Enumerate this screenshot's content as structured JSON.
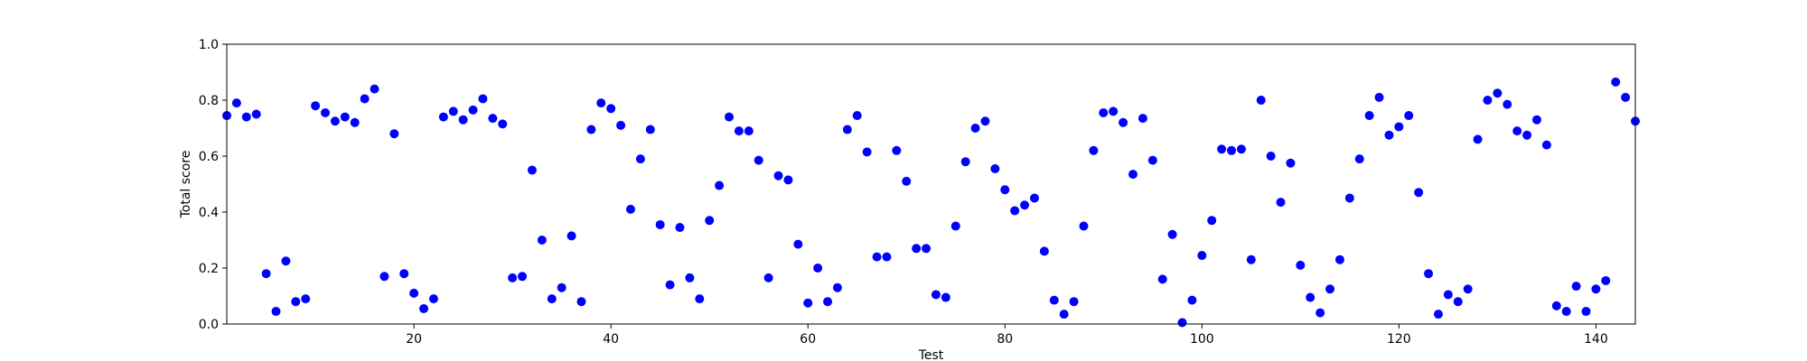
{
  "chart_data": {
    "type": "scatter",
    "title": "",
    "xlabel": "Test",
    "ylabel": "Total score",
    "xlim": [
      1,
      144
    ],
    "ylim": [
      0.0,
      1.0
    ],
    "x_ticks": [
      20,
      40,
      60,
      80,
      100,
      120,
      140
    ],
    "y_ticks": [
      0.0,
      0.2,
      0.4,
      0.6,
      0.8,
      1.0
    ],
    "x_tick_labels": [
      "20",
      "40",
      "60",
      "80",
      "100",
      "120",
      "140"
    ],
    "y_tick_labels": [
      "0.0",
      "0.2",
      "0.4",
      "0.6",
      "0.8",
      "1.0"
    ],
    "grid": false,
    "marker_color": "#0000ff",
    "series": [
      {
        "x": [
          1,
          2,
          3,
          4,
          5,
          6,
          7,
          8,
          9,
          10,
          11,
          12,
          13,
          14,
          15,
          16,
          17,
          18,
          19,
          20,
          21,
          22,
          23,
          24,
          25,
          26,
          27,
          28,
          29,
          30,
          31,
          32,
          33,
          34,
          35,
          36,
          37,
          38,
          39,
          40,
          41,
          42,
          43,
          44,
          45,
          46,
          47,
          48,
          49,
          50,
          51,
          52,
          53,
          54,
          55,
          56,
          57,
          58,
          59,
          60,
          61,
          62,
          63,
          64,
          65,
          66,
          67,
          68,
          69,
          70,
          71,
          72,
          73,
          74,
          75,
          76,
          77,
          78,
          79,
          80,
          81,
          82,
          83,
          84,
          85,
          86,
          87,
          88,
          89,
          90,
          91,
          92,
          93,
          94,
          95,
          96,
          97,
          98,
          99,
          100,
          101,
          102,
          103,
          104,
          105,
          106,
          107,
          108,
          109,
          110,
          111,
          112,
          113,
          114,
          115,
          116,
          117,
          118,
          119,
          120,
          121,
          122,
          123,
          124,
          125,
          126,
          127,
          128,
          129,
          130,
          131,
          132,
          133,
          134,
          135,
          136,
          137,
          138,
          139,
          140,
          141,
          142,
          143,
          144
        ],
        "y": [
          0.745,
          0.79,
          0.74,
          0.75,
          0.18,
          0.045,
          0.225,
          0.08,
          0.09,
          0.78,
          0.755,
          0.725,
          0.74,
          0.72,
          0.805,
          0.84,
          0.17,
          0.68,
          0.18,
          0.11,
          0.055,
          0.09,
          0.74,
          0.76,
          0.73,
          0.765,
          0.805,
          0.735,
          0.715,
          0.165,
          0.17,
          0.55,
          0.3,
          0.09,
          0.13,
          0.315,
          0.08,
          0.695,
          0.79,
          0.77,
          0.71,
          0.41,
          0.59,
          0.695,
          0.355,
          0.14,
          0.345,
          0.165,
          0.09,
          0.37,
          0.495,
          0.74,
          0.69,
          0.69,
          0.585,
          0.165,
          0.53,
          0.515,
          0.285,
          0.075,
          0.2,
          0.08,
          0.13,
          0.695,
          0.745,
          0.615,
          0.24,
          0.24,
          0.62,
          0.51,
          0.27,
          0.27,
          0.105,
          0.095,
          0.35,
          0.58,
          0.7,
          0.725,
          0.555,
          0.48,
          0.405,
          0.425,
          0.45,
          0.26,
          0.085,
          0.035,
          0.08,
          0.35,
          0.62,
          0.755,
          0.76,
          0.72,
          0.535,
          0.735,
          0.585,
          0.16,
          0.32,
          0.005,
          0.085,
          0.245,
          0.37,
          0.625,
          0.62,
          0.625,
          0.23,
          0.8,
          0.6,
          0.435,
          0.575,
          0.21,
          0.095,
          0.04,
          0.125,
          0.23,
          0.45,
          0.59,
          0.745,
          0.81,
          0.675,
          0.705,
          0.745,
          0.47,
          0.18,
          0.035,
          0.105,
          0.08,
          0.125,
          0.66,
          0.8,
          0.825,
          0.785,
          0.69,
          0.675,
          0.73,
          0.64,
          0.065,
          0.045,
          0.135,
          0.045,
          0.125,
          0.155,
          0.865,
          0.81,
          0.725
        ]
      }
    ]
  }
}
